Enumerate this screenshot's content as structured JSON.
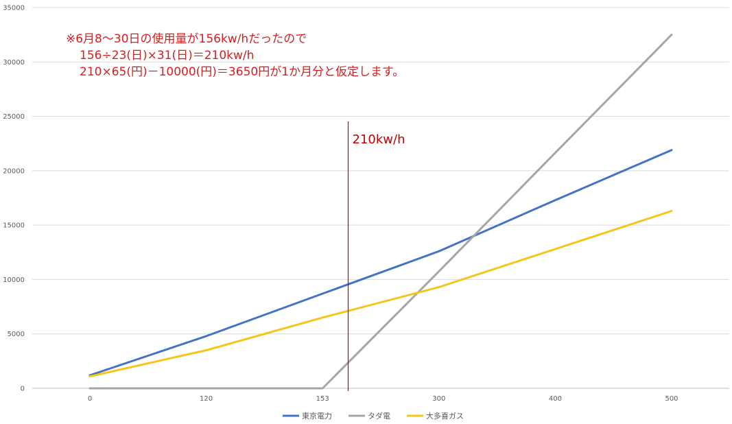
{
  "chart_data": {
    "type": "line",
    "categories": [
      "0",
      "120",
      "153",
      "300",
      "400",
      "500"
    ],
    "series": [
      {
        "name": "東京電力",
        "color": "#4472c4",
        "values": [
          1200,
          4800,
          8700,
          12600,
          17300,
          21900
        ]
      },
      {
        "name": "タダ電",
        "color": "#a5a5a5",
        "values": [
          0,
          0,
          0,
          10750,
          21650,
          32500
        ]
      },
      {
        "name": "大多喜ガス",
        "color": "#f5c518",
        "values": [
          1100,
          3500,
          6500,
          9300,
          12800,
          16300
        ]
      }
    ],
    "ylim": [
      0,
      35000
    ],
    "yticks": [
      0,
      5000,
      10000,
      15000,
      20000,
      25000,
      30000,
      35000
    ],
    "grid": true,
    "legend_position": "bottom",
    "marker": {
      "label": "210kw/h",
      "x_position_between": [
        "153",
        "300"
      ],
      "color": "#c00000"
    },
    "annotation": {
      "lines": [
        "※6月8～30日の使用量が156kw/hだったので",
        "156÷23(日)×31(日)＝210kw/h",
        "210×65(円)－10000(円)＝3650円が1か月分と仮定します。"
      ],
      "color": "#d42020"
    }
  }
}
